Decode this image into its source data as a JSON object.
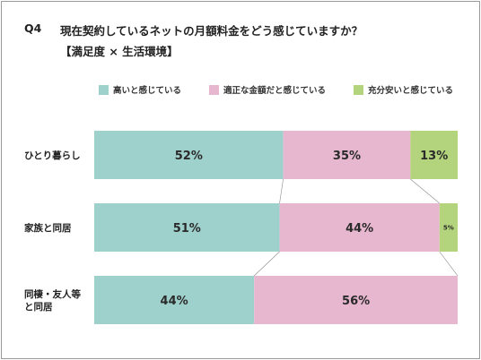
{
  "header": {
    "q_number": "Q4",
    "question": "現在契約しているネットの月額料金をどう感じていますか？",
    "subtitle": "【満足度 × 生活環境】"
  },
  "chart_data": {
    "type": "bar",
    "orientation": "horizontal",
    "stacked": "100%",
    "title": "現在契約しているネットの月額料金をどう感じていますか？",
    "subtitle": "【満足度 × 生活環境】",
    "categories": [
      "ひとり暮らし",
      "家族と同居",
      "同棲・友人等と同居"
    ],
    "category_display_lines": [
      [
        "ひとり暮らし"
      ],
      [
        "家族と同居"
      ],
      [
        "同棲・友人等",
        "と同居"
      ]
    ],
    "series": [
      {
        "name": "高いと感じている",
        "values": [
          52,
          51,
          44
        ],
        "labels": [
          "52%",
          "51%",
          "44%"
        ],
        "color": "#9fd1cc"
      },
      {
        "name": "適正な金額だと感じている",
        "values": [
          35,
          44,
          56
        ],
        "labels": [
          "35%",
          "44%",
          "56%"
        ],
        "color": "#e7b7d0"
      },
      {
        "name": "充分安いと感じている",
        "values": [
          13,
          5,
          0
        ],
        "labels": [
          "13%",
          "5%",
          ""
        ],
        "color": "#b3d47c"
      }
    ],
    "xlim": [
      0,
      100
    ],
    "legend_position": "top-right",
    "grid": false,
    "connector_lines": true
  }
}
